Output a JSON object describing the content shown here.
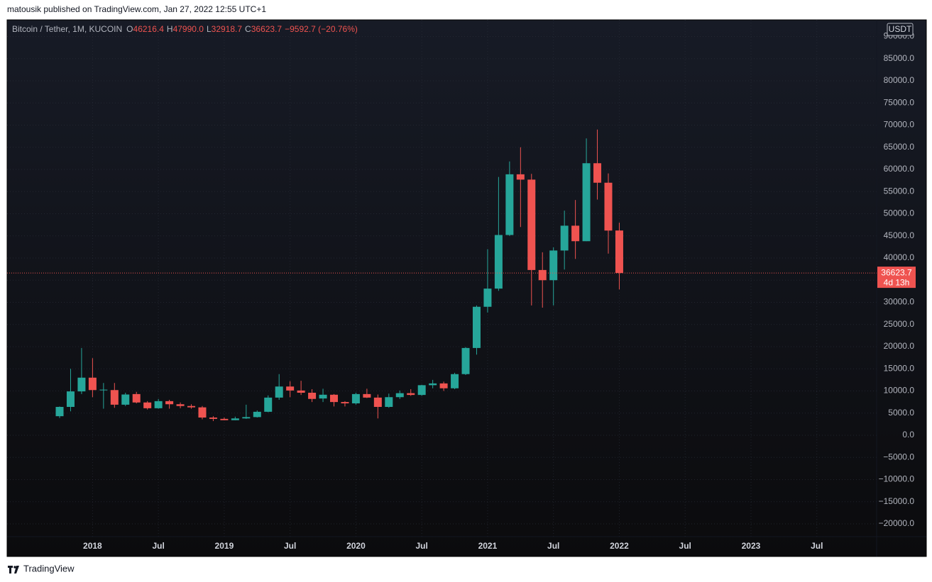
{
  "header": {
    "published": "matousik published on TradingView.com, Jan 27, 2022 12:55 UTC+1"
  },
  "chart_data": {
    "type": "candlestick",
    "symbol": "Bitcoin / Tether, 1M, KUCOIN",
    "ohlc_legend": [
      {
        "label": "O",
        "value": "46216.4"
      },
      {
        "label": "H",
        "value": "47990.0"
      },
      {
        "label": "L",
        "value": "32918.7"
      },
      {
        "label": "C",
        "value": "36623.7"
      }
    ],
    "change": "−9592.7 (−20.76%)",
    "currency": "USDT",
    "countdown": "4d 13h",
    "categories": [
      null,
      null,
      null,
      "2018",
      null,
      null,
      null,
      null,
      null,
      "Jul",
      null,
      null,
      null,
      null,
      null,
      "2019",
      null,
      null,
      null,
      null,
      null,
      "Jul",
      null,
      null,
      null,
      null,
      null,
      "2020",
      null,
      null,
      null,
      null,
      null,
      "Jul",
      null,
      null,
      null,
      null,
      null,
      "2021",
      null,
      null,
      null,
      null,
      null,
      "Jul",
      null,
      null,
      null,
      null,
      null,
      "2022",
      null,
      null,
      null,
      null,
      null,
      "Jul",
      null,
      null,
      null,
      null,
      null,
      "2023",
      null,
      null,
      null,
      null,
      null,
      "Jul",
      null,
      null,
      null,
      null,
      null
    ],
    "open": [
      4300,
      6400,
      9900,
      13000,
      10200,
      10200,
      6900,
      9300,
      7400,
      6100,
      7700,
      7000,
      6600,
      6300,
      4000,
      3700,
      3400,
      3800,
      4100,
      5300,
      8500,
      11000,
      10100,
      9600,
      8300,
      9150,
      7500,
      7200,
      9300,
      8500,
      6400,
      8600,
      9500,
      9100,
      11300,
      11700,
      10600,
      13800,
      19700,
      29000,
      33100,
      45200,
      58900,
      57700,
      37300,
      35000,
      41700,
      47300,
      43800,
      61400,
      57000,
      46216.4,
      null,
      null,
      null,
      null,
      null,
      null,
      null,
      null,
      null,
      null,
      null,
      null,
      null,
      null,
      null,
      null,
      null,
      null,
      null,
      null,
      null,
      null,
      null
    ],
    "high": [
      6500,
      15000,
      19700,
      17400,
      11800,
      11800,
      9600,
      9800,
      7700,
      8200,
      8000,
      7400,
      7000,
      6600,
      4300,
      4000,
      4200,
      6900,
      5600,
      9000,
      13800,
      12200,
      12300,
      10400,
      10500,
      9300,
      7700,
      9600,
      10500,
      9200,
      9400,
      10100,
      10400,
      11400,
      12500,
      12100,
      14100,
      19900,
      29300,
      42000,
      58300,
      61800,
      65000,
      59000,
      41300,
      42400,
      50700,
      53100,
      67000,
      69000,
      59100,
      47990,
      null,
      null,
      null,
      null,
      null,
      null,
      null,
      null,
      null,
      null,
      null,
      null,
      null,
      null,
      null,
      null,
      null,
      null,
      null,
      null,
      null,
      null,
      null
    ],
    "low": [
      3900,
      5400,
      9300,
      8600,
      6000,
      6200,
      6600,
      7200,
      5800,
      6000,
      6000,
      6100,
      6000,
      3600,
      3200,
      3400,
      3400,
      3700,
      4000,
      5200,
      8000,
      8600,
      9100,
      7500,
      7500,
      6500,
      6500,
      6900,
      8400,
      3800,
      6200,
      8200,
      8900,
      8900,
      10600,
      10000,
      10400,
      13600,
      18200,
      27700,
      32600,
      45000,
      47000,
      29300,
      28800,
      29300,
      37400,
      39800,
      43800,
      53200,
      41000,
      32918.7,
      null,
      null,
      null,
      null,
      null,
      null,
      null,
      null,
      null,
      null,
      null,
      null,
      null,
      null,
      null,
      null,
      null,
      null,
      null,
      null,
      null,
      null,
      null
    ],
    "close": [
      6400,
      9900,
      13000,
      10200,
      10300,
      6900,
      9200,
      7400,
      6100,
      7700,
      7000,
      6600,
      6300,
      4000,
      3700,
      3400,
      3800,
      4100,
      5300,
      8500,
      11000,
      10100,
      9600,
      8200,
      9150,
      7500,
      7200,
      9300,
      8500,
      6400,
      8600,
      9500,
      9100,
      11300,
      11700,
      10600,
      13800,
      19700,
      29000,
      33100,
      45200,
      58900,
      57700,
      37300,
      35000,
      41700,
      47300,
      43800,
      61400,
      57000,
      46200,
      36623.7,
      null,
      null,
      null,
      null,
      null,
      null,
      null,
      null,
      null,
      null,
      null,
      null,
      null,
      null,
      null,
      null,
      null,
      null,
      null,
      null,
      null,
      null,
      null
    ],
    "up_color": "#26a69a",
    "down_color": "#ef5350",
    "ylim": [
      -22880,
      92640
    ],
    "yticks": [
      {
        "value": -20000,
        "label": "−20000.0"
      },
      {
        "value": -15000,
        "label": "−15000.0"
      },
      {
        "value": -10000,
        "label": "−10000.0"
      },
      {
        "value": -5000,
        "label": "−5000.0"
      },
      {
        "value": 0,
        "label": "0.0"
      },
      {
        "value": 5000,
        "label": "5000.0"
      },
      {
        "value": 10000,
        "label": "10000.0"
      },
      {
        "value": 15000,
        "label": "15000.0"
      },
      {
        "value": 20000,
        "label": "20000.0"
      },
      {
        "value": 25000,
        "label": "25000.0"
      },
      {
        "value": 30000,
        "label": "30000.0"
      },
      {
        "value": 35000,
        "label": "35000.0"
      },
      {
        "value": 40000,
        "label": "40000.0"
      },
      {
        "value": 45000,
        "label": "45000.0"
      },
      {
        "value": 50000,
        "label": "50000.0"
      },
      {
        "value": 55000,
        "label": "55000.0"
      },
      {
        "value": 60000,
        "label": "60000.0"
      },
      {
        "value": 65000,
        "label": "65000.0"
      },
      {
        "value": 70000,
        "label": "70000.0"
      },
      {
        "value": 75000,
        "label": "75000.0"
      },
      {
        "value": 80000,
        "label": "80000.0"
      },
      {
        "value": 85000,
        "label": "85000.0"
      },
      {
        "value": 90000,
        "label": "90000.0"
      }
    ],
    "grid": true
  },
  "footer": {
    "brand": "TradingView"
  }
}
